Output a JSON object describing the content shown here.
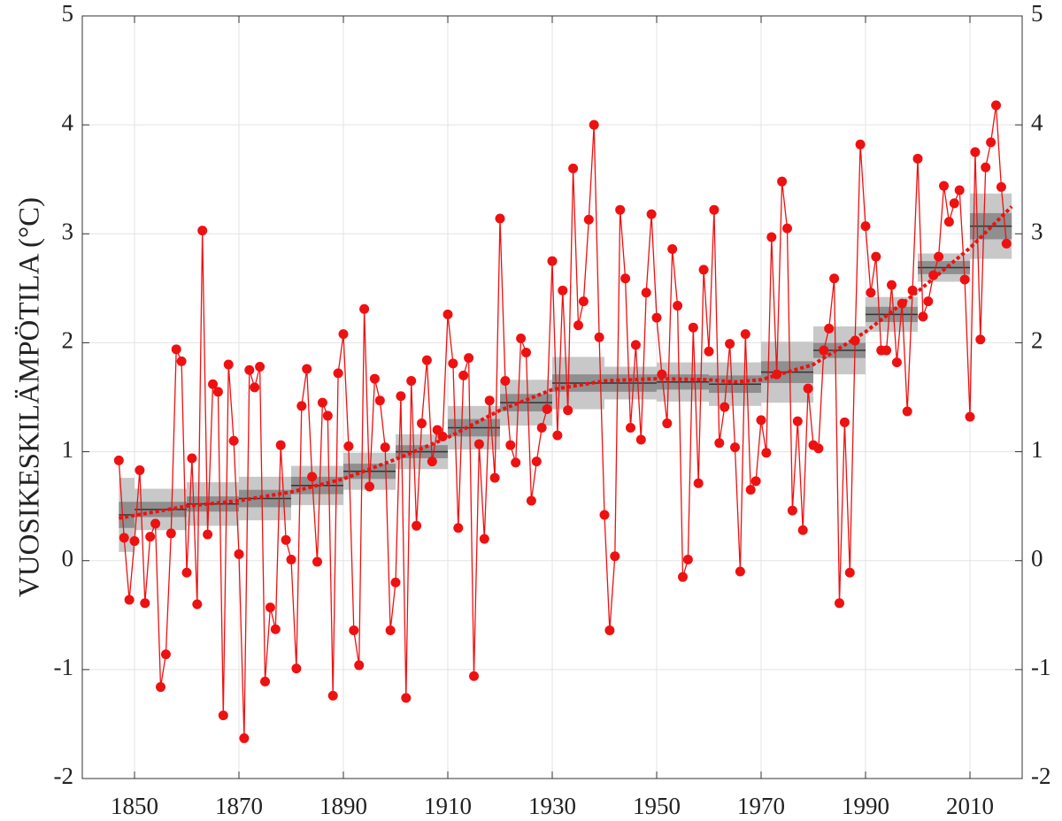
{
  "chart_data": {
    "type": "line",
    "y_label": "VUOSIKESKILÄMPÖTILA (°C)",
    "xlim": [
      1840,
      2020
    ],
    "xticks": [
      1850,
      1870,
      1890,
      1910,
      1930,
      1950,
      1970,
      1990,
      2010
    ],
    "ylim": [
      -2,
      5
    ],
    "yticks": [
      -2,
      -1,
      0,
      1,
      2,
      3,
      4,
      5
    ],
    "grid": true,
    "x": [
      1847,
      1848,
      1849,
      1850,
      1851,
      1852,
      1853,
      1854,
      1855,
      1856,
      1857,
      1858,
      1859,
      1860,
      1861,
      1862,
      1863,
      1864,
      1865,
      1866,
      1867,
      1868,
      1869,
      1870,
      1871,
      1872,
      1873,
      1874,
      1875,
      1876,
      1877,
      1878,
      1879,
      1880,
      1881,
      1882,
      1883,
      1884,
      1885,
      1886,
      1887,
      1888,
      1889,
      1890,
      1891,
      1892,
      1893,
      1894,
      1895,
      1896,
      1897,
      1898,
      1899,
      1900,
      1901,
      1902,
      1903,
      1904,
      1905,
      1906,
      1907,
      1908,
      1909,
      1910,
      1911,
      1912,
      1913,
      1914,
      1915,
      1916,
      1917,
      1918,
      1919,
      1920,
      1921,
      1922,
      1923,
      1924,
      1925,
      1926,
      1927,
      1928,
      1929,
      1930,
      1931,
      1932,
      1933,
      1934,
      1935,
      1936,
      1937,
      1938,
      1939,
      1940,
      1941,
      1942,
      1943,
      1944,
      1945,
      1946,
      1947,
      1948,
      1949,
      1950,
      1951,
      1952,
      1953,
      1954,
      1955,
      1956,
      1957,
      1958,
      1959,
      1960,
      1961,
      1962,
      1963,
      1964,
      1965,
      1966,
      1967,
      1968,
      1969,
      1970,
      1971,
      1972,
      1973,
      1974,
      1975,
      1976,
      1977,
      1978,
      1979,
      1980,
      1981,
      1982,
      1983,
      1984,
      1985,
      1986,
      1987,
      1988,
      1989,
      1990,
      1991,
      1992,
      1993,
      1994,
      1995,
      1996,
      1997,
      1998,
      1999,
      2000,
      2001,
      2002,
      2003,
      2004,
      2005,
      2006,
      2007,
      2008,
      2009,
      2010,
      2011,
      2012,
      2013,
      2014,
      2015,
      2016,
      2017
    ],
    "series": [
      {
        "color": "#ee1111",
        "values": [
          0.92,
          0.21,
          -0.36,
          0.18,
          0.83,
          -0.39,
          0.22,
          0.34,
          -1.16,
          -0.86,
          0.25,
          1.94,
          1.83,
          -0.11,
          0.94,
          -0.4,
          3.03,
          0.24,
          1.62,
          1.55,
          -1.42,
          1.8,
          1.1,
          0.06,
          -1.63,
          1.75,
          1.59,
          1.78,
          -1.11,
          -0.43,
          -0.63,
          1.06,
          0.19,
          0.01,
          -0.99,
          1.42,
          1.76,
          0.77,
          -0.01,
          1.45,
          1.33,
          -1.24,
          1.72,
          2.08,
          1.05,
          -0.64,
          -0.96,
          2.31,
          0.68,
          1.67,
          1.47,
          1.04,
          -0.64,
          -0.2,
          1.51,
          -1.26,
          1.65,
          0.32,
          1.26,
          1.84,
          0.91,
          1.2,
          1.14,
          2.26,
          1.81,
          0.3,
          1.7,
          1.86,
          -1.06,
          1.07,
          0.2,
          1.47,
          0.76,
          3.14,
          1.65,
          1.06,
          0.9,
          2.04,
          1.91,
          0.55,
          0.91,
          1.22,
          1.39,
          2.75,
          1.15,
          2.48,
          1.38,
          3.6,
          2.16,
          2.38,
          3.13,
          4.0,
          2.05,
          0.42,
          -0.64,
          0.04,
          3.22,
          2.59,
          1.22,
          1.98,
          1.11,
          2.46,
          3.18,
          2.23,
          1.71,
          1.26,
          2.86,
          2.34,
          -0.15,
          0.01,
          2.14,
          0.71,
          2.67,
          1.92,
          3.22,
          1.08,
          1.41,
          1.99,
          1.04,
          -0.1,
          2.08,
          0.65,
          0.73,
          1.29,
          0.99,
          2.97,
          1.71,
          3.48,
          3.05,
          0.46,
          1.28,
          0.28,
          1.58,
          1.06,
          1.03,
          1.93,
          2.13,
          2.59,
          -0.39,
          1.27,
          -0.11,
          2.02,
          3.82,
          3.07,
          2.46,
          2.79,
          1.93,
          1.93,
          2.53,
          1.82,
          2.36,
          1.37,
          2.48,
          3.69,
          2.24,
          2.38,
          2.62,
          2.79,
          3.44,
          3.11,
          3.28,
          3.4,
          2.58,
          1.32,
          3.75,
          2.03,
          3.61,
          3.84,
          4.18,
          3.43,
          2.91
        ]
      }
    ],
    "decades": {
      "start": [
        1847,
        1850,
        1860,
        1870,
        1880,
        1890,
        1900,
        1910,
        1920,
        1930,
        1940,
        1950,
        1960,
        1970,
        1980,
        1990,
        2000,
        2010
      ],
      "end": [
        1850,
        1860,
        1870,
        1880,
        1890,
        1900,
        1910,
        1920,
        1930,
        1940,
        1950,
        1960,
        1970,
        1980,
        1990,
        2000,
        2010,
        2018
      ],
      "mean": [
        0.42,
        0.47,
        0.52,
        0.57,
        0.69,
        0.82,
        1.0,
        1.22,
        1.45,
        1.63,
        1.63,
        1.64,
        1.62,
        1.73,
        1.93,
        2.26,
        2.69,
        3.07
      ],
      "inner": [
        0.12,
        0.07,
        0.07,
        0.08,
        0.08,
        0.07,
        0.06,
        0.08,
        0.08,
        0.08,
        0.08,
        0.07,
        0.08,
        0.1,
        0.07,
        0.07,
        0.06,
        0.12
      ],
      "outer": [
        0.34,
        0.19,
        0.2,
        0.2,
        0.18,
        0.17,
        0.16,
        0.2,
        0.21,
        0.24,
        0.15,
        0.18,
        0.2,
        0.28,
        0.22,
        0.16,
        0.13,
        0.3
      ]
    },
    "trend": {
      "color": "#ee1111",
      "x": [
        1847,
        1860,
        1870,
        1880,
        1890,
        1900,
        1910,
        1920,
        1930,
        1940,
        1950,
        1960,
        1965,
        1970,
        1980,
        1990,
        2000,
        2010,
        2018
      ],
      "values": [
        0.39,
        0.5,
        0.55,
        0.63,
        0.75,
        0.93,
        1.13,
        1.38,
        1.57,
        1.65,
        1.67,
        1.66,
        1.64,
        1.66,
        1.8,
        2.1,
        2.47,
        2.87,
        3.25
      ]
    }
  }
}
